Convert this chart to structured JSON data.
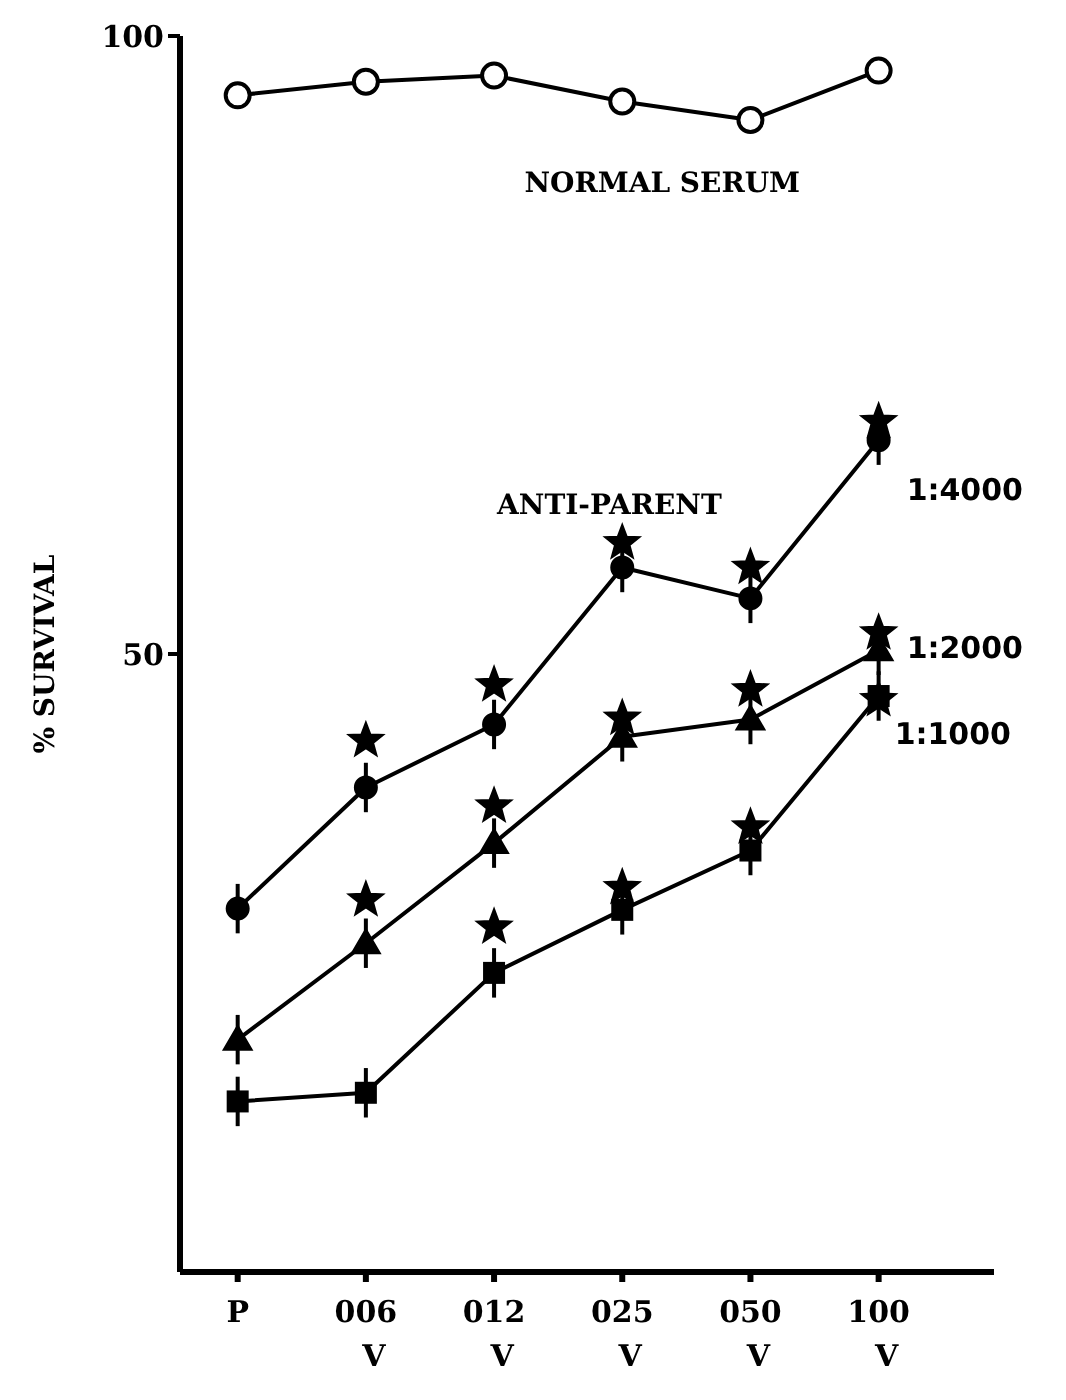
{
  "chart_data": {
    "type": "line",
    "ylabel": "% SURVIVAL",
    "categories": [
      "P",
      "006\nV",
      "012\nV",
      "025\nV",
      "050\nV",
      "100\nV"
    ],
    "ylim": [
      0,
      100
    ],
    "yticks": [
      50,
      100
    ],
    "grid": false,
    "legend": false,
    "line_style": "solid",
    "series": [
      {
        "name": "NORMAL SERUM",
        "color": "#000000",
        "marker": "circle",
        "values": [
          95.2,
          96.3,
          96.8,
          94.7,
          93.2,
          97.2
        ]
      },
      {
        "name": "1:4000",
        "color": "#000000",
        "marker": "circle",
        "values": [
          29.4,
          39.2,
          44.3,
          57.0,
          54.5,
          67.3
        ],
        "errors": [
          2,
          2,
          2,
          2,
          2,
          2
        ]
      },
      {
        "name": "1:2000",
        "color": "#000000",
        "marker": "triangle",
        "values": [
          18.8,
          26.6,
          34.7,
          43.3,
          44.7,
          50.3
        ],
        "errors": [
          2,
          2,
          2,
          2,
          2,
          2
        ]
      },
      {
        "name": "1:1000",
        "color": "#000000",
        "marker": "square",
        "values": [
          13.8,
          14.5,
          24.2,
          29.3,
          34.1,
          46.6
        ],
        "errors": [
          2,
          2,
          2,
          2,
          2,
          2
        ]
      },
      {
        "type": "scatter",
        "color": "#000000",
        "marker": "star",
        "x": [
          "006\nV",
          "006\nV",
          "012\nV",
          "012\nV",
          "012\nV",
          "025\nV",
          "025\nV",
          "025\nV",
          "050\nV",
          "050\nV",
          "050\nV",
          "100\nV",
          "100\nV",
          "100\nV"
        ],
        "values": [
          43.0,
          30.1,
          47.5,
          37.7,
          27.9,
          44.8,
          31.1,
          59.0,
          47.1,
          36.0,
          57.0,
          51.7,
          46.3,
          68.8
        ]
      }
    ],
    "annotations": [
      "ANTI-PARENT"
    ]
  }
}
